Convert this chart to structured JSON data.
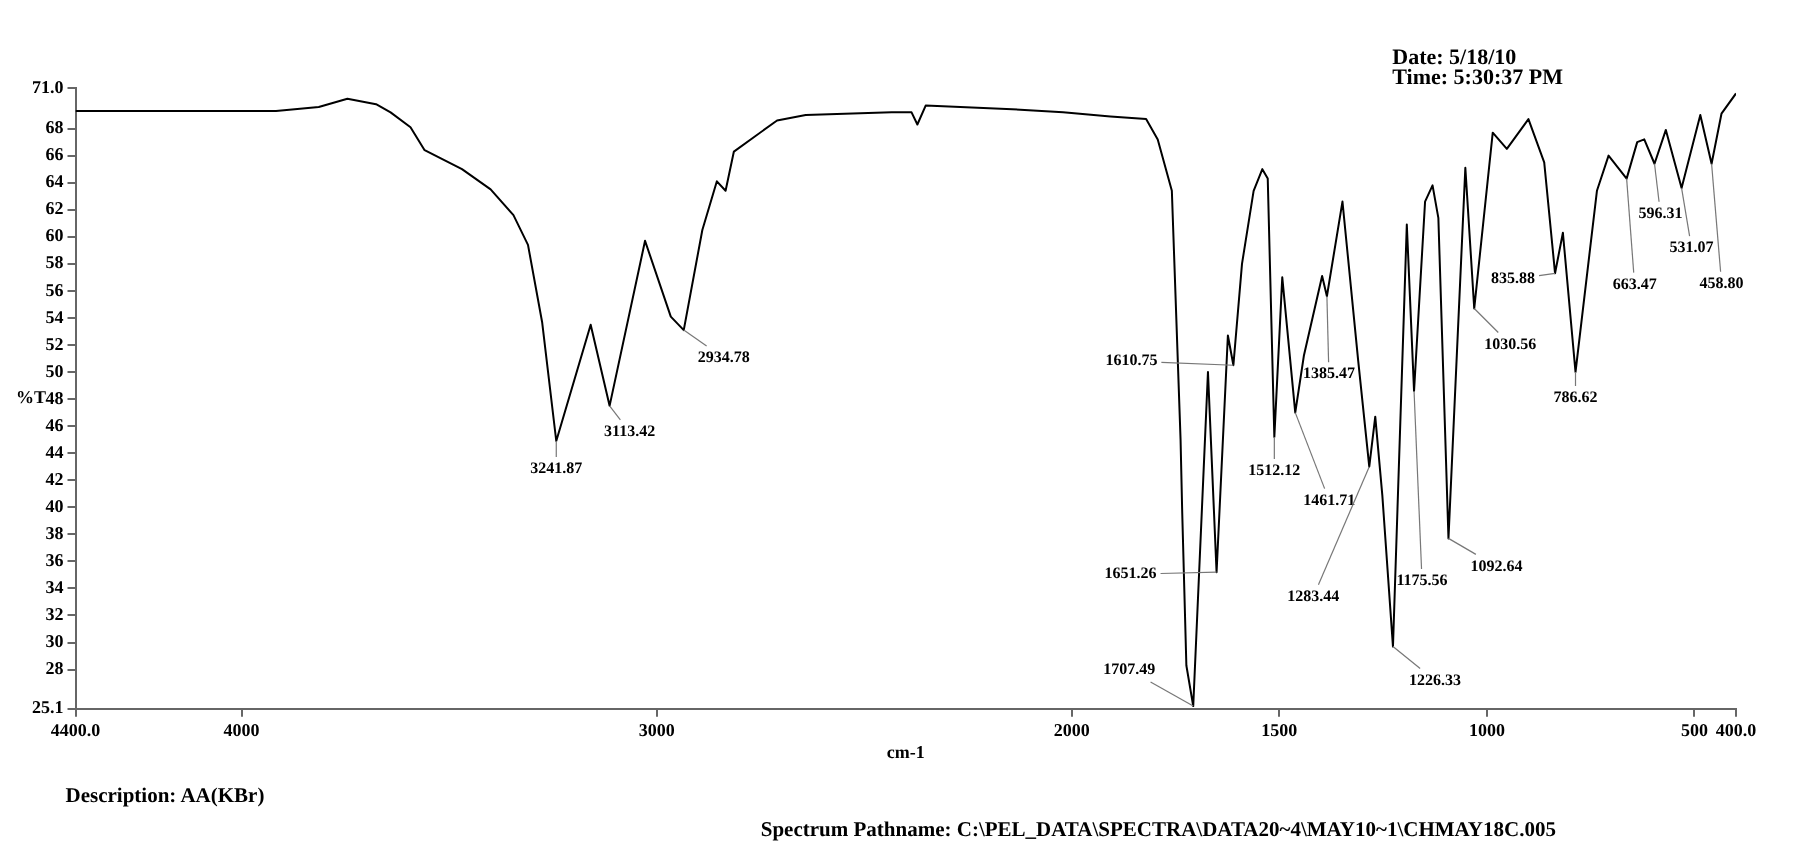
{
  "chart_data": {
    "type": "line",
    "xlabel": "cm-1",
    "ylabel": "%T",
    "xlim": [
      4400,
      400
    ],
    "ylim": [
      25.1,
      71.0
    ],
    "xticks": [
      {
        "value": 4400,
        "label": "4400.0"
      },
      4000,
      3000,
      2000,
      1500,
      1000,
      500,
      {
        "value": 400,
        "label": "400.0"
      }
    ],
    "yticks": [
      {
        "value": 25.1,
        "label": "25.1"
      },
      28,
      30,
      32,
      34,
      36,
      38,
      40,
      42,
      44,
      46,
      48,
      50,
      52,
      54,
      56,
      58,
      60,
      62,
      64,
      66,
      68,
      {
        "value": 71.0,
        "label": "71.0"
      }
    ],
    "series": [
      {
        "color": "#000000",
        "x": [
          4400,
          3917,
          3814,
          3745,
          3676,
          3641,
          3593,
          3559,
          3469,
          3400,
          3345,
          3310,
          3276,
          3241.87,
          3159,
          3113.42,
          3028,
          2966,
          2934.78,
          2890,
          2855,
          2834,
          2814,
          2710,
          2641,
          2434,
          2386,
          2372,
          2352,
          2124,
          2021,
          1907,
          1821,
          1793,
          1759,
          1738,
          1734,
          1724,
          1707.49,
          1672,
          1651.26,
          1624,
          1610.75,
          1590,
          1562,
          1541,
          1528,
          1512.12,
          1493,
          1461.71,
          1441,
          1397,
          1385.47,
          1348,
          1310,
          1283.44,
          1269,
          1252,
          1226.33,
          1193,
          1175.56,
          1149,
          1131,
          1117,
          1092.64,
          1052,
          1030.56,
          986,
          952,
          900,
          862,
          835.88,
          817,
          786.62,
          735,
          707,
          663.47,
          638,
          621,
          596.31,
          569,
          531.07,
          486,
          458.8,
          435,
          400
        ],
        "values": [
          69.3,
          69.3,
          69.6,
          70.2,
          69.8,
          69.2,
          68.1,
          66.4,
          65.0,
          63.5,
          61.6,
          59.4,
          53.7,
          44.9,
          53.5,
          47.5,
          59.7,
          54.1,
          53.1,
          60.5,
          64.1,
          63.4,
          66.3,
          68.6,
          69.0,
          69.2,
          69.2,
          68.3,
          69.7,
          69.4,
          69.2,
          68.9,
          68.7,
          67.2,
          63.4,
          45.0,
          39.6,
          28.3,
          25.3,
          50.0,
          35.2,
          52.7,
          50.5,
          58.0,
          63.4,
          65.0,
          64.3,
          45.2,
          57.0,
          47.0,
          51.2,
          57.1,
          55.6,
          62.6,
          50.8,
          43.0,
          46.7,
          40.9,
          29.7,
          60.9,
          48.6,
          62.6,
          63.8,
          61.4,
          37.7,
          65.1,
          54.7,
          67.7,
          66.5,
          68.7,
          65.5,
          57.3,
          60.3,
          50.0,
          63.4,
          66.0,
          64.3,
          67.0,
          67.2,
          65.4,
          67.9,
          63.6,
          69.0,
          65.4,
          69.1,
          70.6
        ]
      }
    ],
    "annotations": [
      {
        "text": "3241.87",
        "x": 3241.87,
        "y": 44.9
      },
      {
        "text": "3113.42",
        "x": 3113.42,
        "y": 47.5
      },
      {
        "text": "2934.78",
        "x": 2934.78,
        "y": 53.1
      },
      {
        "text": "1707.49",
        "x": 1707.49,
        "y": 25.3
      },
      {
        "text": "1651.26",
        "x": 1651.26,
        "y": 35.2
      },
      {
        "text": "1610.75",
        "x": 1610.75,
        "y": 50.5
      },
      {
        "text": "1512.12",
        "x": 1512.12,
        "y": 45.2
      },
      {
        "text": "1461.71",
        "x": 1461.71,
        "y": 47.0
      },
      {
        "text": "1385.47",
        "x": 1385.47,
        "y": 55.6
      },
      {
        "text": "1283.44",
        "x": 1283.44,
        "y": 43.0
      },
      {
        "text": "1226.33",
        "x": 1226.33,
        "y": 29.7
      },
      {
        "text": "1175.56",
        "x": 1175.56,
        "y": 48.6
      },
      {
        "text": "1092.64",
        "x": 1092.64,
        "y": 37.7
      },
      {
        "text": "1030.56",
        "x": 1030.56,
        "y": 54.7
      },
      {
        "text": "835.88",
        "x": 835.88,
        "y": 57.3
      },
      {
        "text": "786.62",
        "x": 786.62,
        "y": 50.0
      },
      {
        "text": "663.47",
        "x": 663.47,
        "y": 64.3
      },
      {
        "text": "596.31",
        "x": 596.31,
        "y": 65.4
      },
      {
        "text": "531.07",
        "x": 531.07,
        "y": 63.6
      },
      {
        "text": "458.80",
        "x": 458.8,
        "y": 65.4
      },
      "Date: 5/18/10",
      "Time: 5:30:37 PM",
      "Description: AA(KBr)",
      "Spectrum Pathname: C:\\PEL_DATA\\SPECTRA\\DATA20~4\\MAY10~1\\CHMAY18C.005"
    ]
  }
}
